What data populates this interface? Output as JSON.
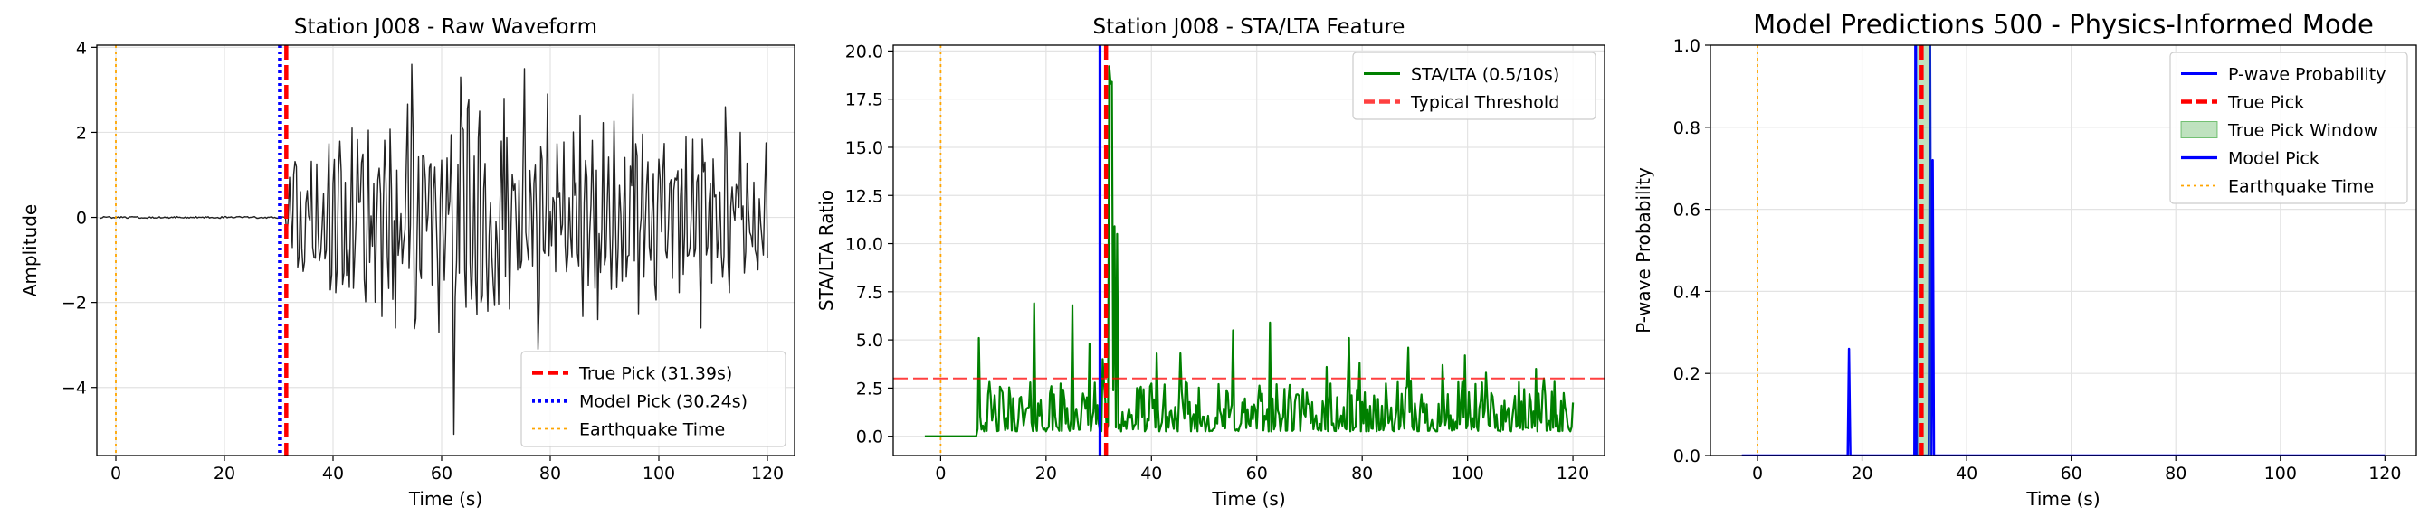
{
  "chart_data": [
    {
      "type": "line",
      "title": "Station J008 - Raw Waveform",
      "xlabel": "Time (s)",
      "ylabel": "Amplitude",
      "xlim": [
        -3.5,
        125
      ],
      "ylim": [
        -5.6,
        4.05
      ],
      "xticks": [
        0,
        20,
        40,
        60,
        80,
        100,
        120
      ],
      "yticks": [
        -4,
        -2,
        0,
        2,
        4
      ],
      "grid": true,
      "legend_position": "lower-right",
      "series": [
        {
          "name": "True Pick (31.39s)",
          "kind": "vline",
          "x": 31.39,
          "color": "#ff0000",
          "style": "dashed"
        },
        {
          "name": "Model Pick (30.24s)",
          "kind": "vline",
          "x": 30.24,
          "color": "#0000ff",
          "style": "dotted"
        },
        {
          "name": "Earthquake Time",
          "kind": "vline",
          "x": 0,
          "color": "#ffa500",
          "style": "dotted"
        }
      ],
      "waveform": {
        "color": "#222222",
        "x_start": -3,
        "x_end": 120,
        "pre_event_end": 31.39,
        "envelope": [
          [
            31.4,
            1.7
          ],
          [
            40,
            2.2
          ],
          [
            50,
            2.4
          ],
          [
            56,
            3.0
          ],
          [
            60,
            2.8
          ],
          [
            62,
            3.2
          ],
          [
            70,
            2.4
          ],
          [
            80,
            2.3
          ],
          [
            90,
            2.6
          ],
          [
            100,
            2.4
          ],
          [
            110,
            2.1
          ],
          [
            120,
            1.8
          ]
        ],
        "peaks": [
          [
            54.5,
            3.6
          ],
          [
            62.2,
            -5.1
          ],
          [
            51.6,
            -2.6
          ],
          [
            59.5,
            -2.7
          ],
          [
            63.6,
            3.3
          ],
          [
            67.1,
            2.5
          ],
          [
            71.5,
            2.8
          ],
          [
            75.3,
            3.5
          ],
          [
            77.8,
            -3.1
          ],
          [
            79.4,
            2.9
          ],
          [
            85.4,
            2.4
          ],
          [
            88.7,
            -2.4
          ],
          [
            95.2,
            2.9
          ],
          [
            103.6,
            1.1
          ],
          [
            107.8,
            -2.6
          ],
          [
            108.4,
            1.3
          ],
          [
            112.2,
            2.6
          ],
          [
            115.1,
            2.0
          ]
        ]
      }
    },
    {
      "type": "line",
      "title": "Station J008 - STA/LTA Feature",
      "xlabel": "Time (s)",
      "ylabel": "STA/LTA Ratio",
      "xlim": [
        -9,
        126
      ],
      "ylim": [
        -1.0,
        20.3
      ],
      "xticks": [
        0,
        20,
        40,
        60,
        80,
        100,
        120
      ],
      "yticks": [
        0.0,
        2.5,
        5.0,
        7.5,
        10.0,
        12.5,
        15.0,
        17.5,
        20.0
      ],
      "grid": true,
      "legend_position": "top-right",
      "series": [
        {
          "name": "STA/LTA (0.5/10s)",
          "kind": "line",
          "color": "#008000"
        },
        {
          "name": "Typical Threshold",
          "kind": "hline",
          "y": 3.0,
          "color": "#ff0000",
          "style": "dashed"
        },
        {
          "kind": "vline",
          "x": 30.24,
          "color": "#0000ff",
          "style": "solid"
        },
        {
          "kind": "vline",
          "x": 31.39,
          "color": "#ff0000",
          "style": "dashed"
        },
        {
          "kind": "vline",
          "x": 0,
          "color": "#ffa500",
          "style": "dotted"
        }
      ],
      "sta_lta": {
        "x_start": -3,
        "flat_until": 7,
        "x_end": 120,
        "spikes": [
          [
            7.2,
            5.1
          ],
          [
            17.8,
            6.9
          ],
          [
            25.0,
            6.8
          ],
          [
            28.2,
            4.8
          ],
          [
            30.7,
            4.0
          ],
          [
            32.0,
            19.2
          ],
          [
            32.3,
            18.3
          ],
          [
            32.6,
            18.4
          ],
          [
            33.0,
            10.9
          ],
          [
            33.4,
            10.5
          ],
          [
            41.0,
            4.3
          ],
          [
            45.4,
            4.3
          ],
          [
            55.6,
            5.5
          ],
          [
            62.6,
            5.9
          ],
          [
            73.2,
            3.6
          ],
          [
            77.5,
            5.1
          ],
          [
            79.5,
            3.8
          ],
          [
            88.7,
            4.6
          ],
          [
            95.3,
            3.7
          ],
          [
            99.5,
            4.2
          ],
          [
            103.5,
            3.3
          ],
          [
            113.1,
            3.5
          ],
          [
            114.5,
            3.0
          ]
        ]
      }
    },
    {
      "type": "line",
      "title": "Model Predictions 500 - Physics-Informed Mode",
      "xlabel": "Time (s)",
      "ylabel": "P-wave Probability",
      "xlim": [
        -9,
        126
      ],
      "ylim": [
        0.0,
        1.0
      ],
      "xticks": [
        0,
        20,
        40,
        60,
        80,
        100,
        120
      ],
      "yticks": [
        0.0,
        0.2,
        0.4,
        0.6,
        0.8,
        1.0
      ],
      "grid": true,
      "legend_position": "top-right",
      "series": [
        {
          "name": "P-wave Probability",
          "kind": "line",
          "color": "#0000ff"
        },
        {
          "name": "True Pick",
          "kind": "vline",
          "x": 31.39,
          "color": "#ff0000",
          "style": "dashed"
        },
        {
          "name": "True Pick Window",
          "kind": "band",
          "x0": 30.2,
          "x1": 33.2,
          "color": "#2ca02c"
        },
        {
          "name": "Model Pick",
          "kind": "vline",
          "x": 30.24,
          "color": "#0000ff",
          "style": "solid"
        },
        {
          "name": "Earthquake Time",
          "kind": "vline",
          "x": 0,
          "color": "#ffa500",
          "style": "dotted"
        }
      ],
      "probability": {
        "x_start": -3,
        "x_end": 120,
        "spikes": [
          [
            17.5,
            0.26
          ],
          [
            30.24,
            1.0
          ],
          [
            33.1,
            1.0
          ],
          [
            33.6,
            0.72
          ]
        ]
      }
    }
  ]
}
